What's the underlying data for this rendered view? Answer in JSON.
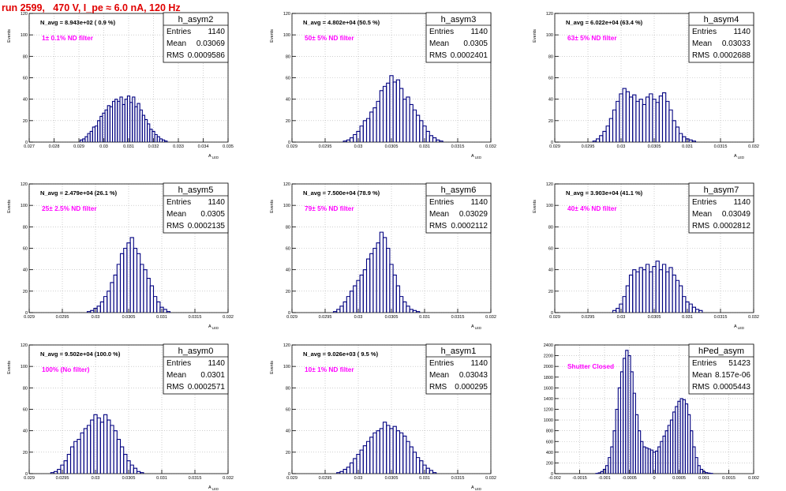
{
  "page_title": "run 2599,   470 V, I_pe ≈ 6.0 nA, 120 Hz",
  "stats_labels": {
    "entries": "Entries",
    "mean": "Mean",
    "rms": "RMS"
  },
  "colors": {
    "title": "#e00000",
    "histogram": "#000080",
    "annotation": "#ff00ff",
    "grid": "#b0b0b0"
  },
  "chart_data": [
    {
      "type": "bar",
      "histogram": true,
      "name": "h_asym2",
      "header": "N_avg = 8.943e+02 ( 0.9 %)",
      "annotation": "1± 0.1% ND filter",
      "stats": {
        "entries": "1140",
        "mean": "0.03069",
        "rms": "0.0009586"
      },
      "xlabel": "A_LED",
      "ylabel": "Events",
      "xlim": [
        0.027,
        0.035
      ],
      "ylim": [
        0,
        120
      ],
      "xticks": [
        "0.027",
        "0.028",
        "0.029",
        "0.03",
        "0.031",
        "0.032",
        "0.033",
        "0.034",
        "0.035"
      ],
      "yticks": [
        "0",
        "20",
        "40",
        "60",
        "80",
        "100",
        "120"
      ],
      "grid": true,
      "x": [
        0.0291,
        0.0292,
        0.0293,
        0.0294,
        0.0295,
        0.0296,
        0.0297,
        0.0298,
        0.0299,
        0.03,
        0.0301,
        0.0302,
        0.0303,
        0.0304,
        0.0305,
        0.0306,
        0.0307,
        0.0308,
        0.0309,
        0.031,
        0.0311,
        0.0312,
        0.0313,
        0.0314,
        0.0315,
        0.0316,
        0.0317,
        0.0318,
        0.0319,
        0.032,
        0.0321,
        0.0322,
        0.0323,
        0.0324,
        0.0325
      ],
      "values": [
        2,
        3,
        5,
        8,
        10,
        14,
        15,
        20,
        24,
        27,
        30,
        34,
        33,
        38,
        40,
        38,
        42,
        35,
        40,
        43,
        37,
        42,
        33,
        36,
        30,
        25,
        21,
        17,
        12,
        10,
        7,
        5,
        3,
        2,
        1
      ]
    },
    {
      "type": "bar",
      "histogram": true,
      "name": "h_asym3",
      "header": "N_avg = 4.802e+04 (50.5 %)",
      "annotation": "50± 5% ND filter",
      "stats": {
        "entries": "1140",
        "mean": "0.0305",
        "rms": "0.0002401"
      },
      "xlabel": "A_LED",
      "ylabel": "Events",
      "xlim": [
        0.029,
        0.032
      ],
      "ylim": [
        0,
        120
      ],
      "xticks": [
        "0.029",
        "0.0295",
        "0.03",
        "0.0305",
        "0.031",
        "0.0315",
        "0.032"
      ],
      "yticks": [
        "0",
        "20",
        "40",
        "60",
        "80",
        "100",
        "120"
      ],
      "grid": true,
      "x": [
        0.0298,
        0.02985,
        0.0299,
        0.02995,
        0.03,
        0.03005,
        0.0301,
        0.03015,
        0.0302,
        0.03025,
        0.0303,
        0.03035,
        0.0304,
        0.03045,
        0.0305,
        0.03055,
        0.0306,
        0.03065,
        0.0307,
        0.03075,
        0.0308,
        0.03085,
        0.0309,
        0.03095,
        0.031,
        0.03105,
        0.0311,
        0.03115,
        0.0312,
        0.03125
      ],
      "values": [
        1,
        2,
        4,
        7,
        10,
        15,
        20,
        22,
        28,
        32,
        38,
        48,
        52,
        55,
        62,
        56,
        58,
        50,
        40,
        42,
        35,
        30,
        25,
        20,
        15,
        10,
        6,
        4,
        2,
        1
      ]
    },
    {
      "type": "bar",
      "histogram": true,
      "name": "h_asym4",
      "header": "N_avg = 6.022e+04 (63.4 %)",
      "annotation": "63± 5% ND filter",
      "stats": {
        "entries": "1140",
        "mean": "0.03033",
        "rms": "0.0002688"
      },
      "xlabel": "A_LED",
      "ylabel": "Events",
      "xlim": [
        0.029,
        0.032
      ],
      "ylim": [
        0,
        120
      ],
      "xticks": [
        "0.029",
        "0.0295",
        "0.03",
        "0.0305",
        "0.031",
        "0.0315",
        "0.032"
      ],
      "yticks": [
        "0",
        "20",
        "40",
        "60",
        "80",
        "100",
        "120"
      ],
      "grid": true,
      "x": [
        0.0296,
        0.02965,
        0.0297,
        0.02975,
        0.0298,
        0.02985,
        0.0299,
        0.02995,
        0.03,
        0.03005,
        0.0301,
        0.03015,
        0.0302,
        0.03025,
        0.0303,
        0.03035,
        0.0304,
        0.03045,
        0.0305,
        0.03055,
        0.0306,
        0.03065,
        0.0307,
        0.03075,
        0.0308,
        0.03085,
        0.0309,
        0.03095,
        0.031,
        0.03105,
        0.0311
      ],
      "values": [
        1,
        3,
        6,
        10,
        15,
        22,
        30,
        38,
        45,
        50,
        47,
        42,
        44,
        38,
        40,
        35,
        42,
        45,
        40,
        37,
        43,
        46,
        38,
        30,
        20,
        14,
        8,
        5,
        3,
        2,
        1
      ]
    },
    {
      "type": "bar",
      "histogram": true,
      "name": "h_asym5",
      "header": "N_avg = 2.479e+04 (26.1 %)",
      "annotation": "25± 2.5% ND filter",
      "stats": {
        "entries": "1140",
        "mean": "0.0305",
        "rms": "0.0002135"
      },
      "xlabel": "A_LED",
      "ylabel": "Events",
      "xlim": [
        0.029,
        0.032
      ],
      "ylim": [
        0,
        120
      ],
      "xticks": [
        "0.029",
        "0.0295",
        "0.03",
        "0.0305",
        "0.031",
        "0.0315",
        "0.032"
      ],
      "yticks": [
        "0",
        "20",
        "40",
        "60",
        "80",
        "100",
        "120"
      ],
      "grid": true,
      "x": [
        0.0299,
        0.02995,
        0.03,
        0.03005,
        0.0301,
        0.03015,
        0.0302,
        0.03025,
        0.0303,
        0.03035,
        0.0304,
        0.03045,
        0.0305,
        0.03055,
        0.0306,
        0.03065,
        0.0307,
        0.03075,
        0.0308,
        0.03085,
        0.0309,
        0.03095,
        0.031,
        0.03105,
        0.0311
      ],
      "values": [
        1,
        2,
        4,
        6,
        10,
        15,
        20,
        28,
        35,
        45,
        55,
        60,
        65,
        70,
        60,
        55,
        45,
        40,
        32,
        25,
        15,
        10,
        5,
        3,
        1
      ]
    },
    {
      "type": "bar",
      "histogram": true,
      "name": "h_asym6",
      "header": "N_avg = 7.500e+04 (78.9 %)",
      "annotation": "79± 5% ND filter",
      "stats": {
        "entries": "1140",
        "mean": "0.03029",
        "rms": "0.0002112"
      },
      "xlabel": "A_LED",
      "ylabel": "Events",
      "xlim": [
        0.029,
        0.032
      ],
      "ylim": [
        0,
        120
      ],
      "xticks": [
        "0.029",
        "0.0295",
        "0.03",
        "0.0305",
        "0.031",
        "0.0315",
        "0.032"
      ],
      "yticks": [
        "0",
        "20",
        "40",
        "60",
        "80",
        "100",
        "120"
      ],
      "grid": true,
      "x": [
        0.02965,
        0.0297,
        0.02975,
        0.0298,
        0.02985,
        0.0299,
        0.02995,
        0.03,
        0.03005,
        0.0301,
        0.03015,
        0.0302,
        0.03025,
        0.0303,
        0.03035,
        0.0304,
        0.03045,
        0.0305,
        0.03055,
        0.0306,
        0.03065,
        0.0307,
        0.03075,
        0.0308,
        0.03085,
        0.0309
      ],
      "values": [
        1,
        3,
        6,
        10,
        15,
        20,
        25,
        30,
        35,
        40,
        50,
        55,
        60,
        65,
        75,
        70,
        60,
        45,
        35,
        25,
        15,
        10,
        6,
        3,
        2,
        1
      ]
    },
    {
      "type": "bar",
      "histogram": true,
      "name": "h_asym7",
      "header": "N_avg = 3.903e+04 (41.1 %)",
      "annotation": "40± 4% ND filter",
      "stats": {
        "entries": "1140",
        "mean": "0.03049",
        "rms": "0.0002812"
      },
      "xlabel": "A_LED",
      "ylabel": "Events",
      "xlim": [
        0.029,
        0.032
      ],
      "ylim": [
        0,
        120
      ],
      "xticks": [
        "0.029",
        "0.0295",
        "0.03",
        "0.0305",
        "0.031",
        "0.0315",
        "0.032"
      ],
      "yticks": [
        "0",
        "20",
        "40",
        "60",
        "80",
        "100",
        "120"
      ],
      "grid": true,
      "x": [
        0.0299,
        0.02995,
        0.03,
        0.03005,
        0.0301,
        0.03015,
        0.0302,
        0.03025,
        0.0303,
        0.03035,
        0.0304,
        0.03045,
        0.0305,
        0.03055,
        0.0306,
        0.03065,
        0.0307,
        0.03075,
        0.0308,
        0.03085,
        0.0309,
        0.03095,
        0.031,
        0.03105,
        0.0311,
        0.03115,
        0.0312
      ],
      "values": [
        2,
        4,
        8,
        15,
        25,
        35,
        40,
        38,
        42,
        40,
        45,
        38,
        43,
        48,
        40,
        45,
        38,
        42,
        35,
        30,
        25,
        15,
        10,
        8,
        5,
        3,
        2
      ]
    },
    {
      "type": "bar",
      "histogram": true,
      "name": "h_asym0",
      "header": "N_avg = 9.502e+04 (100.0 %)",
      "annotation": "100% (No filter)",
      "stats": {
        "entries": "1140",
        "mean": "0.0301",
        "rms": "0.0002571"
      },
      "xlabel": "A_LED",
      "ylabel": "Events",
      "xlim": [
        0.029,
        0.032
      ],
      "ylim": [
        0,
        120
      ],
      "xticks": [
        "0.029",
        "0.0295",
        "0.03",
        "0.0305",
        "0.031",
        "0.0315",
        "0.032"
      ],
      "yticks": [
        "0",
        "20",
        "40",
        "60",
        "80",
        "100",
        "120"
      ],
      "grid": true,
      "x": [
        0.02935,
        0.0294,
        0.02945,
        0.0295,
        0.02955,
        0.0296,
        0.02965,
        0.0297,
        0.02975,
        0.0298,
        0.02985,
        0.0299,
        0.02995,
        0.03,
        0.03005,
        0.0301,
        0.03015,
        0.0302,
        0.03025,
        0.0303,
        0.03035,
        0.0304,
        0.03045,
        0.0305,
        0.03055,
        0.0306,
        0.03065,
        0.0307
      ],
      "values": [
        1,
        2,
        4,
        8,
        12,
        18,
        25,
        30,
        32,
        38,
        42,
        45,
        50,
        55,
        52,
        48,
        55,
        50,
        45,
        40,
        32,
        25,
        18,
        12,
        8,
        5,
        2,
        1
      ]
    },
    {
      "type": "bar",
      "histogram": true,
      "name": "h_asym1",
      "header": "N_avg = 9.026e+03 ( 9.5 %)",
      "annotation": "10± 1% ND filter",
      "stats": {
        "entries": "1140",
        "mean": "0.03043",
        "rms": "0.000295"
      },
      "xlabel": "A_LED",
      "ylabel": "Events",
      "xlim": [
        0.029,
        0.032
      ],
      "ylim": [
        0,
        120
      ],
      "xticks": [
        "0.029",
        "0.0295",
        "0.03",
        "0.0305",
        "0.031",
        "0.0315",
        "0.032"
      ],
      "yticks": [
        "0",
        "20",
        "40",
        "60",
        "80",
        "100",
        "120"
      ],
      "grid": true,
      "x": [
        0.0297,
        0.02975,
        0.0298,
        0.02985,
        0.0299,
        0.02995,
        0.03,
        0.03005,
        0.0301,
        0.03015,
        0.0302,
        0.03025,
        0.0303,
        0.03035,
        0.0304,
        0.03045,
        0.0305,
        0.03055,
        0.0306,
        0.03065,
        0.0307,
        0.03075,
        0.0308,
        0.03085,
        0.0309,
        0.03095,
        0.031,
        0.03105,
        0.0311,
        0.03115
      ],
      "values": [
        1,
        2,
        4,
        6,
        10,
        14,
        18,
        22,
        26,
        30,
        34,
        38,
        40,
        42,
        48,
        45,
        42,
        44,
        40,
        38,
        35,
        30,
        25,
        20,
        15,
        12,
        8,
        5,
        3,
        1
      ]
    },
    {
      "type": "bar",
      "histogram": true,
      "name": "hPed_asym",
      "header": "",
      "annotation": "Shutter Closed",
      "stats": {
        "entries": "51423",
        "mean": "8.157e-06",
        "rms": "0.0005443"
      },
      "xlabel": "",
      "ylabel": "",
      "xlim": [
        -0.002,
        0.002
      ],
      "ylim": [
        0,
        2400
      ],
      "xticks": [
        "-0.002",
        "-0.0015",
        "-0.001",
        "-0.0005",
        "0",
        "0.0005",
        "0.001",
        "0.0015",
        "0.002"
      ],
      "yticks": [
        "0",
        "200",
        "400",
        "600",
        "800",
        "1000",
        "1200",
        "1400",
        "1600",
        "1800",
        "2000",
        "2200",
        "2400"
      ],
      "grid": true,
      "x": [
        -0.00115,
        -0.0011,
        -0.00105,
        -0.001,
        -0.00095,
        -0.0009,
        -0.00085,
        -0.0008,
        -0.00075,
        -0.0007,
        -0.00065,
        -0.0006,
        -0.00055,
        -0.0005,
        -0.00045,
        -0.0004,
        -0.00035,
        -0.0003,
        -0.00025,
        -0.0002,
        -0.00015,
        -0.0001,
        -5e-05,
        0.0,
        5e-05,
        0.0001,
        0.00015,
        0.0002,
        0.00025,
        0.0003,
        0.00035,
        0.0004,
        0.00045,
        0.0005,
        0.00055,
        0.0006,
        0.00065,
        0.0007,
        0.00075,
        0.0008,
        0.00085,
        0.0009,
        0.00095,
        0.001,
        0.00105,
        0.0011,
        0.00115
      ],
      "values": [
        5,
        15,
        40,
        80,
        150,
        300,
        500,
        800,
        1200,
        1600,
        1900,
        2150,
        2300,
        2200,
        1900,
        1500,
        1100,
        800,
        600,
        500,
        480,
        460,
        440,
        400,
        420,
        500,
        600,
        700,
        800,
        900,
        1000,
        1150,
        1250,
        1350,
        1400,
        1380,
        1300,
        1100,
        800,
        500,
        300,
        150,
        80,
        40,
        20,
        10,
        5
      ]
    }
  ]
}
